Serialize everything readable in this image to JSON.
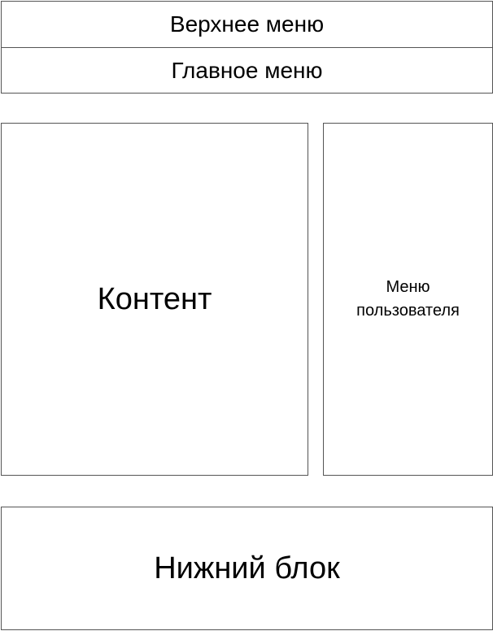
{
  "layout_blocks": {
    "top_menu": "Верхнее меню",
    "main_menu": "Главное меню",
    "content": "Контент",
    "user_menu_line1": "Меню",
    "user_menu_line2": "пользователя",
    "footer": "Нижний блок"
  }
}
